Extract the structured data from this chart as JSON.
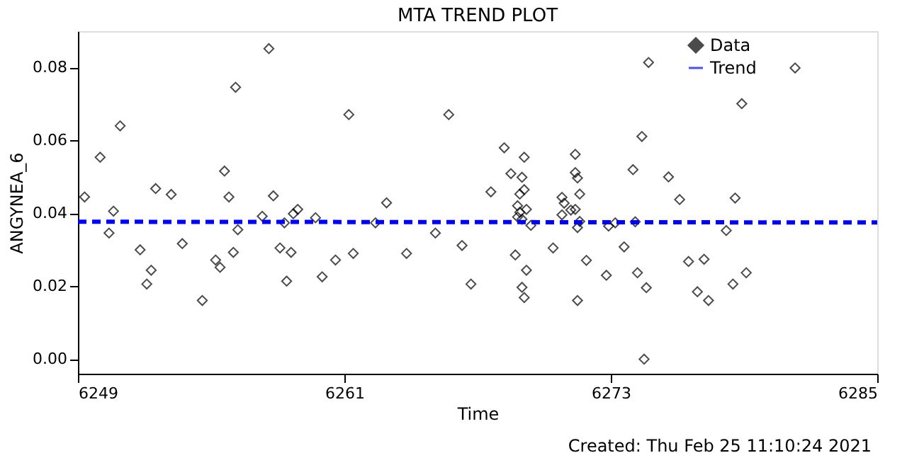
{
  "chart_data": {
    "type": "scatter",
    "title": "MTA TREND PLOT",
    "xlabel": "Time",
    "ylabel": "ANGYNEA_6",
    "annotations": [
      "Created: Thu Feb 25 11:10:24 2021"
    ],
    "xlim": [
      6249,
      6285
    ],
    "xticks": [
      6249,
      6261,
      6273,
      6285
    ],
    "ylim": [
      -0.004,
      0.09
    ],
    "yticks": [
      {
        "value": 0,
        "label": "0.00"
      },
      {
        "value": 0.02,
        "label": "0.02"
      },
      {
        "value": 0.04,
        "label": "0.04"
      },
      {
        "value": 0.06,
        "label": "0.06"
      },
      {
        "value": 0.08,
        "label": "0.08"
      }
    ],
    "grid": false,
    "legend": "top right",
    "series": [
      {
        "name": "Data",
        "marker": "diamond",
        "color": "#000000",
        "x": [
          6249.3,
          6250.0,
          6250.9,
          6250.6,
          6250.4,
          6251.8,
          6252.3,
          6252.1,
          6252.5,
          6253.2,
          6253.7,
          6254.6,
          6255.2,
          6255.4,
          6255.6,
          6255.8,
          6256.0,
          6256.1,
          6256.2,
          6257.3,
          6257.6,
          6257.8,
          6258.1,
          6258.6,
          6258.3,
          6258.7,
          6258.9,
          6258.4,
          6259.7,
          6260.0,
          6260.6,
          6261.2,
          6261.4,
          6262.4,
          6262.9,
          6263.8,
          6265.1,
          6265.7,
          6266.3,
          6266.7,
          6267.6,
          6268.2,
          6268.5,
          6268.7,
          6269.1,
          6269.0,
          6269.1,
          6268.9,
          6268.8,
          6268.9,
          6268.8,
          6269.0,
          6269.2,
          6269.4,
          6269.2,
          6269.0,
          6269.1,
          6270.4,
          6270.8,
          6270.9,
          6270.8,
          6271.2,
          6271.4,
          6271.4,
          6271.5,
          6271.6,
          6271.4,
          6271.6,
          6271.5,
          6271.5,
          6271.9,
          6272.8,
          6272.9,
          6273.2,
          6274.7,
          6274.4,
          6274.0,
          6274.1,
          6273.6,
          6274.2,
          6274.6,
          6274.5,
          6275.6,
          6276.1,
          6276.5,
          6277.2,
          6276.9,
          6277.4,
          6278.2,
          6278.6,
          6278.5,
          6279.1,
          6278.9,
          6281.3
        ],
        "values": [
          0.0445,
          0.0554,
          0.064,
          0.0406,
          0.0346,
          0.03,
          0.0244,
          0.0206,
          0.0468,
          0.0452,
          0.0317,
          0.0161,
          0.0272,
          0.0252,
          0.0516,
          0.0445,
          0.0293,
          0.0746,
          0.0355,
          0.0392,
          0.0852,
          0.0448,
          0.0305,
          0.0293,
          0.0374,
          0.0399,
          0.0411,
          0.0214,
          0.0388,
          0.0226,
          0.0272,
          0.0671,
          0.029,
          0.0374,
          0.0429,
          0.029,
          0.0346,
          0.0671,
          0.0312,
          0.0206,
          0.0459,
          0.058,
          0.0509,
          0.0286,
          0.0554,
          0.0499,
          0.0465,
          0.0453,
          0.0421,
          0.0403,
          0.039,
          0.0384,
          0.0411,
          0.0367,
          0.0244,
          0.0197,
          0.0169,
          0.0305,
          0.0444,
          0.0428,
          0.0396,
          0.0409,
          0.0562,
          0.0512,
          0.0497,
          0.0453,
          0.0411,
          0.0378,
          0.0361,
          0.0161,
          0.0271,
          0.023,
          0.0365,
          0.0374,
          0.0814,
          0.0611,
          0.052,
          0.0377,
          0.0308,
          0.0237,
          0.0196,
          0.0,
          0.05,
          0.0438,
          0.0268,
          0.0274,
          0.0185,
          0.0161,
          0.0353,
          0.0442,
          0.0206,
          0.0237,
          0.0701,
          0.0799
        ]
      },
      {
        "name": "Trend",
        "type": "line",
        "line_style": "dashed",
        "color": "#0000ff",
        "x": [
          6249,
          6285
        ],
        "values": [
          0.0377,
          0.0375
        ]
      }
    ]
  }
}
